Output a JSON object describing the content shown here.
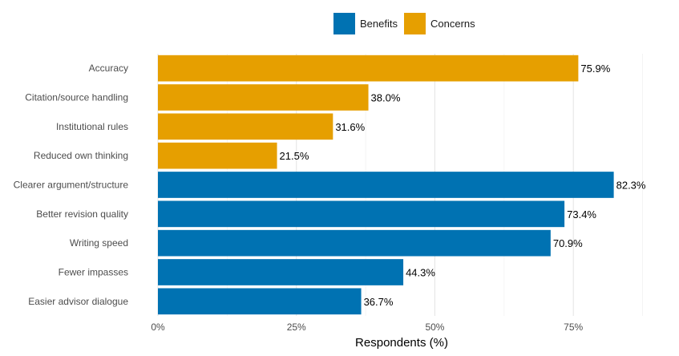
{
  "chart_data": {
    "type": "bar",
    "orientation": "horizontal",
    "title": "",
    "xlabel": "Respondents (%)",
    "ylabel": "",
    "xlim": [
      0,
      88
    ],
    "xticks": [
      0,
      25,
      50,
      75
    ],
    "xtick_labels": [
      "0%",
      "25%",
      "50%",
      "75%"
    ],
    "grid": true,
    "legend_position": "top-center",
    "legend": [
      {
        "name": "Benefits",
        "color": "#0072B2"
      },
      {
        "name": "Concerns",
        "color": "#E69F00"
      }
    ],
    "bars": [
      {
        "category": "Accuracy",
        "value": 75.9,
        "label": "75.9%",
        "group": "Concerns"
      },
      {
        "category": "Citation/source handling",
        "value": 38.0,
        "label": "38.0%",
        "group": "Concerns"
      },
      {
        "category": "Institutional rules",
        "value": 31.6,
        "label": "31.6%",
        "group": "Concerns"
      },
      {
        "category": "Reduced own thinking",
        "value": 21.5,
        "label": "21.5%",
        "group": "Concerns"
      },
      {
        "category": "Clearer argument/structure",
        "value": 82.3,
        "label": "82.3%",
        "group": "Benefits"
      },
      {
        "category": "Better revision quality",
        "value": 73.4,
        "label": "73.4%",
        "group": "Benefits"
      },
      {
        "category": "Writing speed",
        "value": 70.9,
        "label": "70.9%",
        "group": "Benefits"
      },
      {
        "category": "Fewer impasses",
        "value": 44.3,
        "label": "44.3%",
        "group": "Benefits"
      },
      {
        "category": "Easier advisor dialogue",
        "value": 36.7,
        "label": "36.7%",
        "group": "Benefits"
      }
    ]
  }
}
